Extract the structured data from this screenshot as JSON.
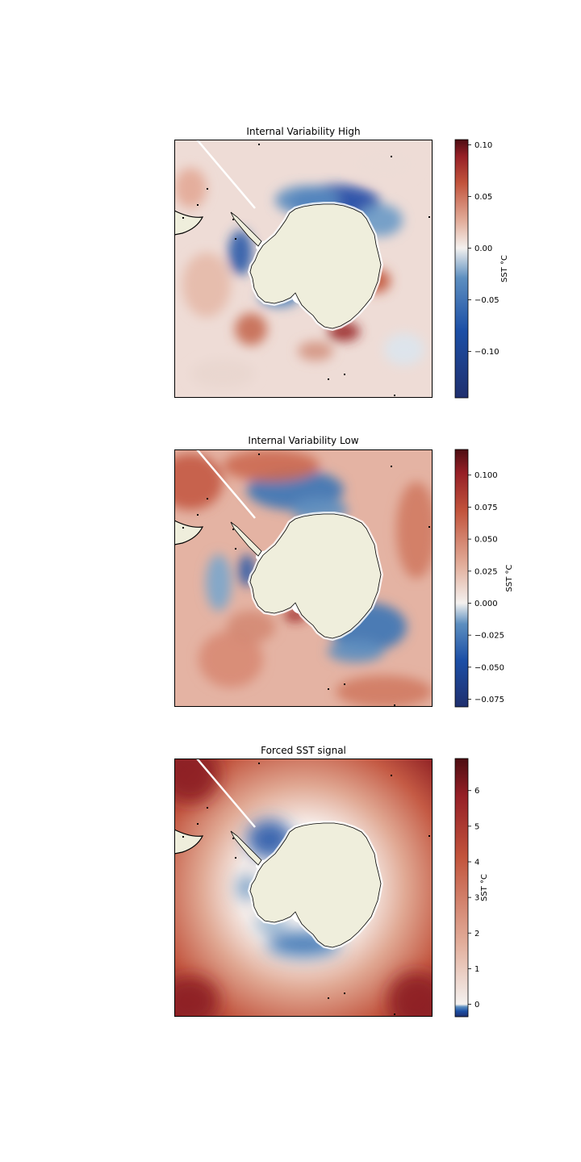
{
  "chart_data": [
    {
      "type": "heatmap",
      "title": "Internal Variability High",
      "colorbar": {
        "label": "SST °C",
        "vmin": -0.145,
        "vmax": 0.105,
        "ticks": [
          -0.1,
          -0.05,
          0.0,
          0.05,
          0.1
        ],
        "tick_labels": [
          "−0.10",
          "−0.05",
          "0.00",
          "0.05",
          "0.10"
        ],
        "colormap": "balance (diverging blue-white-red)"
      },
      "projection": "south polar stereographic",
      "grid": false
    },
    {
      "type": "heatmap",
      "title": "Internal Variability Low",
      "colorbar": {
        "label": "SST °C",
        "vmin": -0.081,
        "vmax": 0.12,
        "ticks": [
          -0.075,
          -0.05,
          -0.025,
          0.0,
          0.025,
          0.05,
          0.075,
          0.1
        ],
        "tick_labels": [
          "−0.075",
          "−0.050",
          "−0.025",
          "0.000",
          "0.025",
          "0.050",
          "0.075",
          "0.100"
        ],
        "colormap": "balance (diverging blue-white-red)"
      },
      "projection": "south polar stereographic",
      "grid": false
    },
    {
      "type": "heatmap",
      "title": "Forced SST signal",
      "colorbar": {
        "label": "SST °C",
        "vmin": -0.35,
        "vmax": 6.9,
        "ticks": [
          0,
          1,
          2,
          3,
          4,
          5,
          6
        ],
        "tick_labels": [
          "0",
          "1",
          "2",
          "3",
          "4",
          "5",
          "6"
        ],
        "colormap": "balance (diverging blue-white-red)"
      },
      "projection": "south polar stereographic",
      "grid": false
    }
  ],
  "colors": {
    "land": "#efeedc",
    "deep_blue": "#1f2f6e",
    "blue": "#2f6fb0",
    "white": "#f4f1ef",
    "red": "#c2543c",
    "deep_red": "#4d0d12"
  }
}
